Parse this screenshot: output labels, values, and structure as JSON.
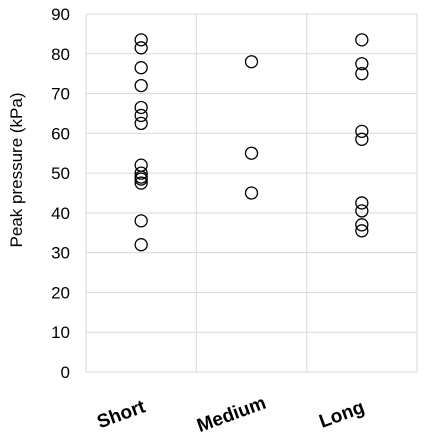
{
  "chart_data": {
    "type": "scatter",
    "title": "",
    "xlabel": "",
    "ylabel": "Peak pressure (kPa)",
    "ylim": [
      0,
      90
    ],
    "yticks": [
      0,
      10,
      20,
      30,
      40,
      50,
      60,
      70,
      80,
      90
    ],
    "categories": [
      "Short",
      "Medium",
      "Long"
    ],
    "grid": true,
    "series": [
      {
        "category": "Short",
        "values": [
          83.5,
          81.5,
          76.5,
          72,
          66.5,
          64.5,
          62.5,
          52,
          50,
          49,
          48.5,
          47.5,
          38,
          32
        ]
      },
      {
        "category": "Medium",
        "values": [
          78,
          55,
          45
        ]
      },
      {
        "category": "Long",
        "values": [
          83.5,
          77.5,
          75,
          60.5,
          58.5,
          42.5,
          40.5,
          37,
          35.5
        ]
      }
    ]
  }
}
